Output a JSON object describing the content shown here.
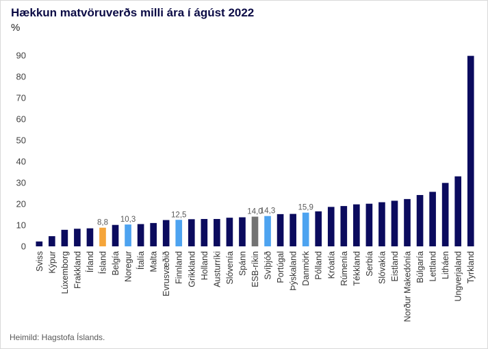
{
  "chart_data": {
    "type": "bar",
    "title": "Hækkun matvöruverðs milli ára í ágúst 2022",
    "ylabel": "%",
    "source": "Heimild: Hagstofa Íslands.",
    "ylim": [
      0,
      90
    ],
    "yticks": [
      0,
      10,
      20,
      30,
      40,
      50,
      60,
      70,
      80,
      90
    ],
    "grid": false,
    "legend": "none",
    "categories": [
      "Sviss",
      "Kýpur",
      "Lúxemborg",
      "Frakkland",
      "Írland",
      "Ísland",
      "Belgía",
      "Noregur",
      "Ítalía",
      "Malta",
      "Evrusvæðið",
      "Finnland",
      "Grikkland",
      "Holland",
      "Austurríki",
      "Slóvenía",
      "Spánn",
      "ESB-ríkin",
      "Svíþjóð",
      "Portúgal",
      "Þýskaland",
      "Danmörk",
      "Pólland",
      "Króatía",
      "Rúmenía",
      "Tékkland",
      "Serbía",
      "Slóvakía",
      "Eistland",
      "Norður Makedónía",
      "Búlgaría",
      "Lettland",
      "Litháen",
      "Ungverjaland",
      "Tyrkland"
    ],
    "values": [
      2.3,
      4.8,
      7.8,
      8.3,
      8.5,
      8.8,
      10.1,
      10.3,
      10.5,
      11.0,
      12.4,
      12.5,
      12.8,
      12.9,
      12.9,
      13.5,
      13.7,
      14.0,
      14.3,
      15.2,
      15.3,
      15.9,
      16.5,
      18.6,
      19.0,
      19.8,
      20.1,
      20.8,
      21.5,
      22.3,
      24.2,
      25.7,
      29.9,
      33.0,
      89.8
    ],
    "colors": [
      "#0b0b5e",
      "#0b0b5e",
      "#0b0b5e",
      "#0b0b5e",
      "#0b0b5e",
      "#f5a53a",
      "#0b0b5e",
      "#4da3f0",
      "#0b0b5e",
      "#0b0b5e",
      "#0b0b5e",
      "#4da3f0",
      "#0b0b5e",
      "#0b0b5e",
      "#0b0b5e",
      "#0b0b5e",
      "#0b0b5e",
      "#737373",
      "#4da3f0",
      "#0b0b5e",
      "#0b0b5e",
      "#4da3f0",
      "#0b0b5e",
      "#0b0b5e",
      "#0b0b5e",
      "#0b0b5e",
      "#0b0b5e",
      "#0b0b5e",
      "#0b0b5e",
      "#0b0b5e",
      "#0b0b5e",
      "#0b0b5e",
      "#0b0b5e",
      "#0b0b5e",
      "#0b0b5e"
    ],
    "data_labels": [
      {
        "index": 5,
        "text": "8,8"
      },
      {
        "index": 7,
        "text": "10,3"
      },
      {
        "index": 11,
        "text": "12,5"
      },
      {
        "index": 17,
        "text": "14,0"
      },
      {
        "index": 18,
        "text": "14,3"
      },
      {
        "index": 21,
        "text": "15,9"
      }
    ]
  }
}
